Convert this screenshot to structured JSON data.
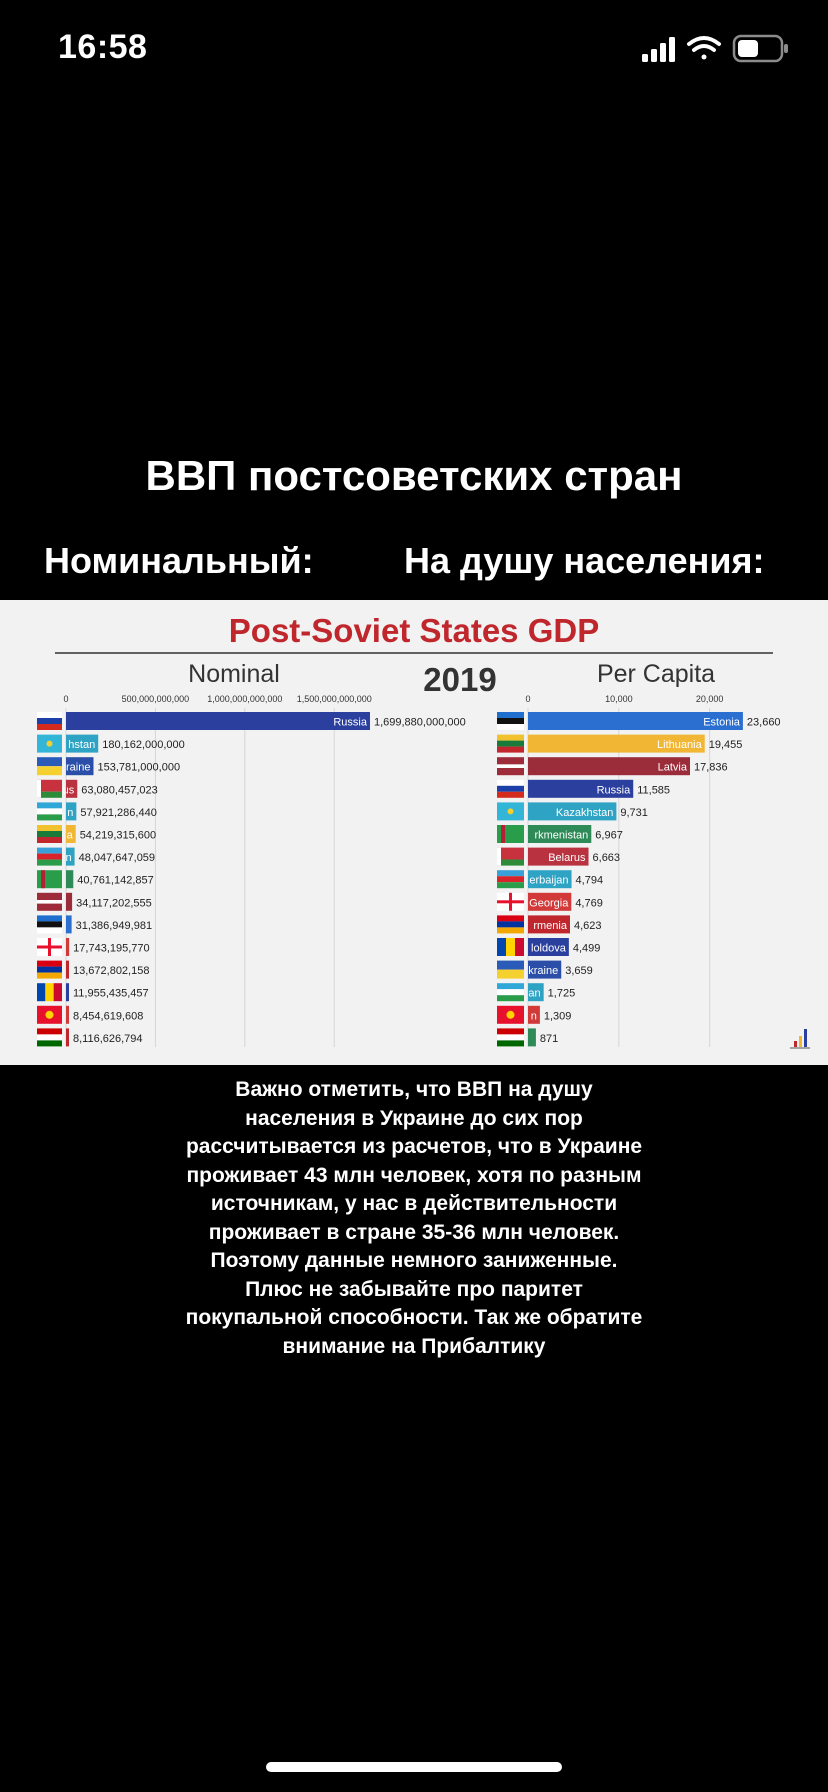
{
  "status_bar": {
    "time": "16:58",
    "battery_level": 0.5,
    "signal_bars": 4,
    "icons": [
      "signal-icon",
      "wifi-icon",
      "battery-icon"
    ]
  },
  "headline": "ВВП постсоветских стран",
  "subheadings": {
    "left": "Номинальный:",
    "right": "На душу населения:"
  },
  "caption_lines": [
    "Важно отметить, что ВВП на душу",
    "населения в Украине до сих пор",
    "рассчитывается из расчетов, что в Украине",
    "проживает 43 млн человек, хотя по разным",
    "источникам, у нас в действительности",
    "проживает в стране 35-36 млн человек.",
    "Поэтому данные немного заниженные.",
    "Плюс не забывайте про паритет",
    "покупальной способности. Так же обратите",
    "внимание на Прибалтику"
  ],
  "colors": {
    "title_red": "#c0272d",
    "russia_blue": "#2b3f9e",
    "kazakh_teal": "#2fa3c4",
    "yellow": "#f2b635",
    "maroon": "#9b2d3b"
  },
  "chart_data": [
    {
      "type": "bar",
      "title": "Post-Soviet States GDP",
      "subtitle": "Nominal",
      "year_label": "2019",
      "orientation": "horizontal",
      "xlim": [
        0,
        1700000000000
      ],
      "ticks": [
        0,
        500000000000,
        1000000000000,
        1500000000000
      ],
      "tick_labels": [
        "0",
        "500,000,000,000",
        "1,000,000,000,000",
        "1,500,000,000,000"
      ],
      "bars": [
        {
          "label": "Russia",
          "flag": "russia",
          "color": "#2b3f9e",
          "value": 1699880000000,
          "value_label": "1,699,880,000,000"
        },
        {
          "label": "hstan",
          "flag": "kazakhstan",
          "color": "#2fa3c4",
          "value": 180162000000,
          "value_label": "180,162,000,000"
        },
        {
          "label": "raine",
          "flag": "ukraine",
          "color": "#2b4fa8",
          "value": 153781000000,
          "value_label": "153,781,000,000"
        },
        {
          "label": "us",
          "flag": "belarus",
          "color": "#b8323f",
          "value": 63080457023,
          "value_label": "63,080,457,023"
        },
        {
          "label": "n",
          "flag": "uzbekistan",
          "color": "#2fa3c4",
          "value": 57921286440,
          "value_label": "57,921,286,440"
        },
        {
          "label": "a",
          "flag": "lithuania",
          "color": "#f2b635",
          "value": 54219315600,
          "value_label": "54,219,315,600"
        },
        {
          "label": "n",
          "flag": "azerbaijan",
          "color": "#2fa3c4",
          "value": 48047647059,
          "value_label": "48,047,647,059"
        },
        {
          "label": "",
          "flag": "turkmenistan",
          "color": "#2e8b57",
          "value": 40761142857,
          "value_label": "40,761,142,857"
        },
        {
          "label": "",
          "flag": "latvia",
          "color": "#9b2d3b",
          "value": 34117202555,
          "value_label": "34,117,202,555"
        },
        {
          "label": "",
          "flag": "estonia",
          "color": "#2b6fd0",
          "value": 31386949981,
          "value_label": "31,386,949,981"
        },
        {
          "label": "",
          "flag": "georgia",
          "color": "#d23a3a",
          "value": 17743195770,
          "value_label": "17,743,195,770"
        },
        {
          "label": "",
          "flag": "armenia",
          "color": "#c0272d",
          "value": 13672802158,
          "value_label": "13,672,802,158"
        },
        {
          "label": "",
          "flag": "moldova",
          "color": "#2b3f9e",
          "value": 11955435457,
          "value_label": "11,955,435,457"
        },
        {
          "label": "",
          "flag": "kyrgyzstan",
          "color": "#d23a3a",
          "value": 8454619608,
          "value_label": "8,454,619,608"
        },
        {
          "label": "",
          "flag": "tajikistan",
          "color": "#c0272d",
          "value": 8116626794,
          "value_label": "8,116,626,794"
        }
      ]
    },
    {
      "type": "bar",
      "subtitle": "Per Capita",
      "orientation": "horizontal",
      "xlim": [
        0,
        24000
      ],
      "ticks": [
        0,
        10000,
        20000
      ],
      "tick_labels": [
        "0",
        "10,000",
        "20,000"
      ],
      "bars": [
        {
          "label": "Estonia",
          "flag": "estonia",
          "color": "#2b6fd0",
          "value": 23660,
          "value_label": "23,660"
        },
        {
          "label": "Lithuania",
          "flag": "lithuania",
          "color": "#f2b635",
          "value": 19455,
          "value_label": "19,455"
        },
        {
          "label": "Latvia",
          "flag": "latvia",
          "color": "#9b2d3b",
          "value": 17836,
          "value_label": "17,836"
        },
        {
          "label": "Russia",
          "flag": "russia",
          "color": "#2b3f9e",
          "value": 11585,
          "value_label": "11,585"
        },
        {
          "label": "Kazakhstan",
          "flag": "kazakhstan",
          "color": "#2fa3c4",
          "value": 9731,
          "value_label": "9,731"
        },
        {
          "label": "rkmenistan",
          "flag": "turkmenistan",
          "color": "#2e8b57",
          "value": 6967,
          "value_label": "6,967"
        },
        {
          "label": "Belarus",
          "flag": "belarus",
          "color": "#b8323f",
          "value": 6663,
          "value_label": "6,663"
        },
        {
          "label": "erbaijan",
          "flag": "azerbaijan",
          "color": "#2fa3c4",
          "value": 4794,
          "value_label": "4,794"
        },
        {
          "label": "Georgia",
          "flag": "georgia",
          "color": "#d23a3a",
          "value": 4769,
          "value_label": "4,769"
        },
        {
          "label": "rmenia",
          "flag": "armenia",
          "color": "#c0272d",
          "value": 4623,
          "value_label": "4,623"
        },
        {
          "label": "loldova",
          "flag": "moldova",
          "color": "#2b3f9e",
          "value": 4499,
          "value_label": "4,499"
        },
        {
          "label": "kraine",
          "flag": "ukraine",
          "color": "#2b4fa8",
          "value": 3659,
          "value_label": "3,659"
        },
        {
          "label": "an",
          "flag": "uzbekistan",
          "color": "#2fa3c4",
          "value": 1725,
          "value_label": "1,725"
        },
        {
          "label": "n",
          "flag": "kyrgyzstan",
          "color": "#d23a3a",
          "value": 1309,
          "value_label": "1,309"
        },
        {
          "label": "",
          "flag": "tajikistan",
          "color": "#2e8b57",
          "value": 871,
          "value_label": "871"
        }
      ]
    }
  ]
}
